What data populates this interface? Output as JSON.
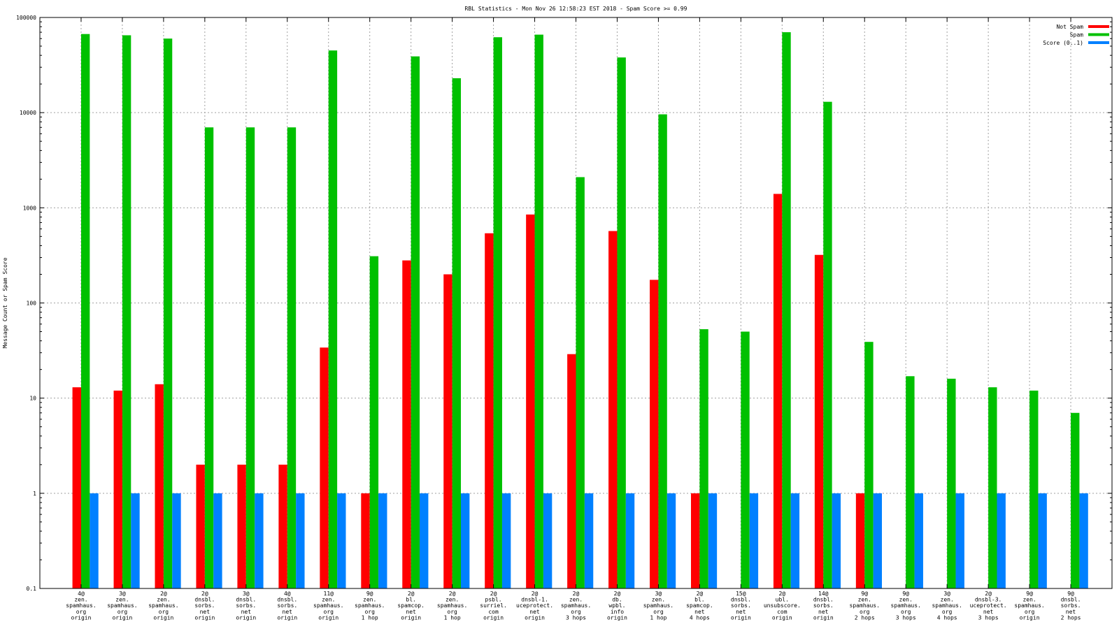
{
  "chart_data": {
    "type": "bar",
    "title": "RBL Statistics - Mon Nov 26 12:58:23 EST 2018 - Spam Score >= 0.99",
    "xlabel": "",
    "ylabel": "Message Count or Spam Score",
    "yscale": "log",
    "ylim": [
      0.1,
      100000
    ],
    "yticks": [
      0.1,
      1,
      10,
      100,
      1000,
      10000,
      100000
    ],
    "ytick_labels": [
      "0.1",
      "1",
      "10",
      "100",
      "1000",
      "10000",
      "100000"
    ],
    "grid": true,
    "legend": "top-right",
    "categories": [
      [
        "4@",
        "zen.",
        "spamhaus.",
        "org",
        "origin"
      ],
      [
        "3@",
        "zen.",
        "spamhaus.",
        "org",
        "origin"
      ],
      [
        "2@",
        "zen.",
        "spamhaus.",
        "org",
        "origin"
      ],
      [
        "2@",
        "dnsbl.",
        "sorbs.",
        "net",
        "origin"
      ],
      [
        "3@",
        "dnsbl.",
        "sorbs.",
        "net",
        "origin"
      ],
      [
        "4@",
        "dnsbl.",
        "sorbs.",
        "net",
        "origin"
      ],
      [
        "11@",
        "zen.",
        "spamhaus.",
        "org",
        "origin"
      ],
      [
        "9@",
        "zen.",
        "spamhaus.",
        "org",
        "1 hop"
      ],
      [
        "2@",
        "bl.",
        "spamcop.",
        "net",
        "origin"
      ],
      [
        "2@",
        "zen.",
        "spamhaus.",
        "org",
        "1 hop"
      ],
      [
        "2@",
        "psbl.",
        "surriel.",
        "com",
        "origin"
      ],
      [
        "2@",
        "dnsbl-1.",
        "uceprotect.",
        "net",
        "origin"
      ],
      [
        "2@",
        "zen.",
        "spamhaus.",
        "org",
        "3 hops"
      ],
      [
        "2@",
        "db.",
        "wpbl.",
        "info",
        "origin"
      ],
      [
        "3@",
        "zen.",
        "spamhaus.",
        "org",
        "1 hop"
      ],
      [
        "2@",
        "bl.",
        "spamcop.",
        "net",
        "4 hops"
      ],
      [
        "15@",
        "dnsbl.",
        "sorbs.",
        "net",
        "origin"
      ],
      [
        "2@",
        "ubl.",
        "unsubscore.",
        "com",
        "origin"
      ],
      [
        "14@",
        "dnsbl.",
        "sorbs.",
        "net",
        "origin"
      ],
      [
        "9@",
        "zen.",
        "spamhaus.",
        "org",
        "2 hops"
      ],
      [
        "9@",
        "zen.",
        "spamhaus.",
        "org",
        "3 hops"
      ],
      [
        "3@",
        "zen.",
        "spamhaus.",
        "org",
        "4 hops"
      ],
      [
        "2@",
        "dnsbl-3.",
        "uceprotect.",
        "net",
        "3 hops"
      ],
      [
        "9@",
        "zen.",
        "spamhaus.",
        "org",
        "origin"
      ],
      [
        "9@",
        "dnsbl.",
        "sorbs.",
        "net",
        "2 hops"
      ]
    ],
    "series": [
      {
        "name": "Not Spam",
        "color": "#ff0000",
        "values": [
          13,
          12,
          14,
          2,
          2,
          2,
          34,
          1,
          280,
          200,
          540,
          850,
          29,
          570,
          175,
          1,
          null,
          1400,
          320,
          1,
          null,
          null,
          null,
          null,
          null
        ]
      },
      {
        "name": "Spam",
        "color": "#00c000",
        "values": [
          67000,
          65000,
          60000,
          7000,
          7000,
          7000,
          45000,
          310,
          39000,
          23000,
          62000,
          66000,
          2100,
          38000,
          9600,
          53,
          50,
          70000,
          13000,
          39,
          17,
          16,
          13,
          12,
          7
        ]
      },
      {
        "name": "Score (0..1)",
        "color": "#0080ff",
        "values": [
          1,
          1,
          1,
          1,
          1,
          1,
          1,
          1,
          1,
          1,
          1,
          1,
          1,
          1,
          1,
          1,
          1,
          1,
          1,
          1,
          1,
          1,
          1,
          1,
          1
        ]
      }
    ]
  }
}
